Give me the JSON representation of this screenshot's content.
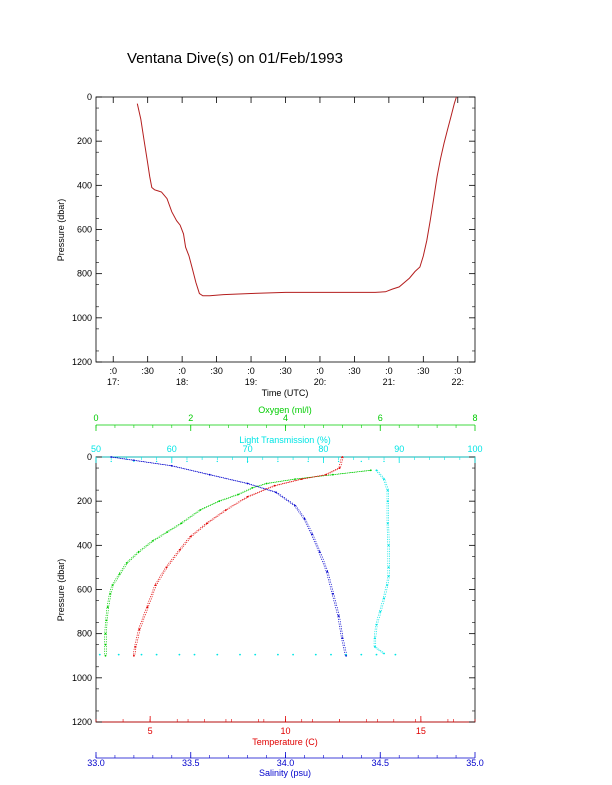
{
  "title": "Ventana Dive(s) on 01/Feb/1993",
  "colors": {
    "axis": "#000000",
    "trace": "#b41e1e",
    "oxygen": "#00cc00",
    "light": "#00e5e5",
    "temperature": "#e00000",
    "salinity": "#0000cc"
  },
  "chart_data": [
    {
      "type": "line",
      "xlabel": "Time (UTC)",
      "ylabel": "Pressure (dbar)",
      "ylim": [
        1200,
        0
      ],
      "xlim": [
        16.75,
        22.25
      ],
      "yticks": [
        0,
        200,
        400,
        600,
        800,
        1000,
        1200
      ],
      "xticks": [
        {
          "v": 17.0,
          "l1": ":0",
          "l2": "17:"
        },
        {
          "v": 17.5,
          "l1": ":30",
          "l2": ""
        },
        {
          "v": 18.0,
          "l1": ":0",
          "l2": "18:"
        },
        {
          "v": 18.5,
          "l1": ":30",
          "l2": ""
        },
        {
          "v": 19.0,
          "l1": ":0",
          "l2": "19:"
        },
        {
          "v": 19.5,
          "l1": ":30",
          "l2": ""
        },
        {
          "v": 20.0,
          "l1": ":0",
          "l2": "20:"
        },
        {
          "v": 20.5,
          "l1": ":30",
          "l2": ""
        },
        {
          "v": 21.0,
          "l1": ":0",
          "l2": "21:"
        },
        {
          "v": 21.5,
          "l1": ":30",
          "l2": ""
        },
        {
          "v": 22.0,
          "l1": ":0",
          "l2": "22:"
        }
      ],
      "series": [
        {
          "x": [
            17.35,
            17.4,
            17.45,
            17.5,
            17.53,
            17.56,
            17.6,
            17.65,
            17.7,
            17.78,
            17.85,
            17.92,
            17.97,
            18.02,
            18.05,
            18.1,
            18.15,
            18.2,
            18.25,
            18.3,
            18.4,
            18.6,
            19.0,
            19.5,
            20.0,
            20.5,
            20.8,
            20.95,
            21.05,
            21.15,
            21.3,
            21.38,
            21.45,
            21.5,
            21.55,
            21.6,
            21.65,
            21.7,
            21.75,
            21.8,
            21.85,
            21.9,
            21.95,
            21.98
          ],
          "y": [
            30,
            100,
            200,
            300,
            360,
            410,
            420,
            425,
            430,
            460,
            520,
            560,
            580,
            620,
            680,
            720,
            780,
            840,
            890,
            900,
            900,
            895,
            890,
            885,
            885,
            885,
            885,
            882,
            870,
            860,
            820,
            790,
            770,
            720,
            650,
            560,
            460,
            360,
            280,
            210,
            150,
            90,
            30,
            0
          ]
        }
      ]
    },
    {
      "type": "scatter",
      "ylabel": "Pressure (dbar)",
      "ylim": [
        1200,
        0
      ],
      "yticks": [
        0,
        200,
        400,
        600,
        800,
        1000,
        1200
      ],
      "axes": {
        "oxygen": {
          "label": "Oxygen (ml/l)",
          "range": [
            0,
            8
          ],
          "ticks": [
            0,
            2,
            4,
            6,
            8
          ]
        },
        "light": {
          "label": "Light Transmission (%)",
          "range": [
            50,
            100
          ],
          "ticks": [
            50,
            60,
            70,
            80,
            90,
            100
          ]
        },
        "temperature": {
          "label": "Temperature (C)",
          "range": [
            3,
            17
          ],
          "ticks": [
            5,
            10,
            15
          ]
        },
        "salinity": {
          "label": "Salinity (psu)",
          "range": [
            33.0,
            35.0
          ],
          "ticks": [
            "33.0",
            "33.5",
            "34.0",
            "34.5",
            "35.0"
          ]
        }
      },
      "series": [
        {
          "name": "Oxygen",
          "x": [
            5.8,
            5.0,
            4.2,
            3.6,
            3.3,
            3.0,
            2.6,
            2.2,
            1.8,
            1.5,
            1.2,
            0.9,
            0.65,
            0.5,
            0.35,
            0.3,
            0.25,
            0.22,
            0.2,
            0.2,
            0.2
          ],
          "y": [
            60,
            80,
            100,
            120,
            140,
            170,
            200,
            240,
            300,
            340,
            380,
            430,
            480,
            530,
            580,
            620,
            680,
            740,
            800,
            850,
            900
          ]
        },
        {
          "name": "Light Transmission",
          "x": [
            87.0,
            88.0,
            88.5,
            88.5,
            88.5,
            88.6,
            88.6,
            88.6,
            88.4,
            88.0,
            87.5,
            87.0,
            86.8,
            86.8,
            88.0
          ],
          "y": [
            60,
            100,
            150,
            200,
            300,
            400,
            500,
            540,
            580,
            640,
            700,
            760,
            820,
            860,
            890
          ]
        },
        {
          "name": "Temperature",
          "x": [
            12.1,
            12.0,
            11.5,
            10.6,
            9.6,
            8.6,
            7.8,
            7.1,
            6.5,
            6.1,
            5.6,
            5.2,
            4.9,
            4.6,
            4.45,
            4.4
          ],
          "y": [
            0,
            50,
            80,
            100,
            130,
            180,
            240,
            300,
            360,
            420,
            500,
            580,
            680,
            780,
            860,
            900
          ]
        },
        {
          "name": "Salinity",
          "x": [
            33.08,
            33.2,
            33.4,
            33.6,
            33.8,
            33.95,
            34.05,
            34.1,
            34.14,
            34.18,
            34.22,
            34.25,
            34.28,
            34.3,
            34.32
          ],
          "y": [
            0,
            15,
            40,
            80,
            120,
            160,
            220,
            280,
            350,
            430,
            520,
            620,
            720,
            820,
            900
          ]
        }
      ],
      "stray_transmission_row": {
        "y": 895,
        "x": [
          50.5,
          53,
          56,
          58,
          61,
          63,
          66,
          69,
          71,
          74,
          76,
          79,
          81,
          83,
          85,
          87,
          89.5
        ]
      },
      "stray_surface_row": {
        "y": 20,
        "x": [
          52,
          55,
          58,
          62,
          66,
          70,
          74,
          78,
          82,
          85,
          88
        ]
      }
    }
  ]
}
